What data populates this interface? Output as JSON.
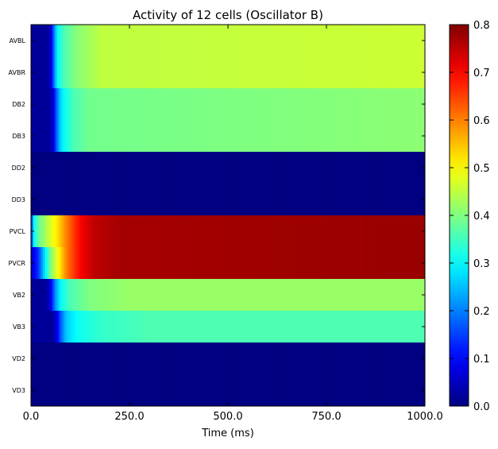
{
  "chart_data": {
    "type": "heatmap",
    "title": "Activity of 12 cells (Oscillator B)",
    "xlabel": "Time (ms)",
    "ylabel": "",
    "xlim": [
      0,
      1000
    ],
    "x_ticks": [
      0,
      250,
      500,
      750,
      1000
    ],
    "x_tick_labels": [
      "0.0",
      "250.0",
      "500.0",
      "750.0",
      "1000.0"
    ],
    "colorbar": {
      "colormap": "jet",
      "range": [
        0.0,
        0.8
      ],
      "ticks": [
        0.0,
        0.1,
        0.2,
        0.3,
        0.4,
        0.5,
        0.6,
        0.7,
        0.8
      ],
      "tick_labels": [
        "0.0",
        "0.1",
        "0.2",
        "0.3",
        "0.4",
        "0.5",
        "0.6",
        "0.7",
        "0.8"
      ]
    },
    "grid": false,
    "rows": [
      {
        "cell": "AVBL",
        "profile": [
          [
            0,
            0.02
          ],
          [
            40,
            0.02
          ],
          [
            50,
            0.05
          ],
          [
            60,
            0.22
          ],
          [
            70,
            0.32
          ],
          [
            90,
            0.37
          ],
          [
            120,
            0.41
          ],
          [
            180,
            0.45
          ],
          [
            1000,
            0.46
          ]
        ]
      },
      {
        "cell": "AVBR",
        "profile": [
          [
            0,
            0.02
          ],
          [
            40,
            0.02
          ],
          [
            50,
            0.05
          ],
          [
            60,
            0.22
          ],
          [
            70,
            0.32
          ],
          [
            90,
            0.37
          ],
          [
            120,
            0.41
          ],
          [
            180,
            0.45
          ],
          [
            1000,
            0.46
          ]
        ]
      },
      {
        "cell": "DB2",
        "profile": [
          [
            0,
            0.02
          ],
          [
            45,
            0.02
          ],
          [
            55,
            0.05
          ],
          [
            65,
            0.18
          ],
          [
            75,
            0.27
          ],
          [
            90,
            0.32
          ],
          [
            110,
            0.36
          ],
          [
            150,
            0.39
          ],
          [
            1000,
            0.41
          ]
        ]
      },
      {
        "cell": "DB3",
        "profile": [
          [
            0,
            0.02
          ],
          [
            45,
            0.02
          ],
          [
            55,
            0.05
          ],
          [
            65,
            0.18
          ],
          [
            75,
            0.27
          ],
          [
            90,
            0.32
          ],
          [
            110,
            0.36
          ],
          [
            150,
            0.39
          ],
          [
            1000,
            0.41
          ]
        ]
      },
      {
        "cell": "DD2",
        "profile": [
          [
            0,
            0.0
          ],
          [
            1000,
            0.0
          ]
        ]
      },
      {
        "cell": "DD3",
        "profile": [
          [
            0,
            0.0
          ],
          [
            1000,
            0.0
          ]
        ]
      },
      {
        "cell": "PVCL",
        "profile": [
          [
            0,
            0.05
          ],
          [
            5,
            0.28
          ],
          [
            15,
            0.36
          ],
          [
            30,
            0.41
          ],
          [
            50,
            0.47
          ],
          [
            70,
            0.53
          ],
          [
            90,
            0.6
          ],
          [
            110,
            0.66
          ],
          [
            130,
            0.71
          ],
          [
            160,
            0.75
          ],
          [
            220,
            0.77
          ],
          [
            1000,
            0.78
          ]
        ]
      },
      {
        "cell": "PVCR",
        "profile": [
          [
            0,
            0.05
          ],
          [
            20,
            0.15
          ],
          [
            35,
            0.28
          ],
          [
            50,
            0.4
          ],
          [
            70,
            0.5
          ],
          [
            90,
            0.6
          ],
          [
            110,
            0.66
          ],
          [
            130,
            0.71
          ],
          [
            160,
            0.75
          ],
          [
            220,
            0.77
          ],
          [
            1000,
            0.78
          ]
        ]
      },
      {
        "cell": "VB2",
        "profile": [
          [
            0,
            0.02
          ],
          [
            40,
            0.02
          ],
          [
            50,
            0.08
          ],
          [
            60,
            0.2
          ],
          [
            75,
            0.3
          ],
          [
            100,
            0.36
          ],
          [
            150,
            0.4
          ],
          [
            250,
            0.42
          ],
          [
            1000,
            0.42
          ]
        ]
      },
      {
        "cell": "VB3",
        "profile": [
          [
            0,
            0.02
          ],
          [
            55,
            0.02
          ],
          [
            65,
            0.07
          ],
          [
            75,
            0.17
          ],
          [
            90,
            0.26
          ],
          [
            120,
            0.31
          ],
          [
            180,
            0.34
          ],
          [
            300,
            0.36
          ],
          [
            1000,
            0.36
          ]
        ]
      },
      {
        "cell": "VD2",
        "profile": [
          [
            0,
            0.0
          ],
          [
            1000,
            0.0
          ]
        ]
      },
      {
        "cell": "VD3",
        "profile": [
          [
            0,
            0.0
          ],
          [
            1000,
            0.0
          ]
        ]
      }
    ]
  }
}
